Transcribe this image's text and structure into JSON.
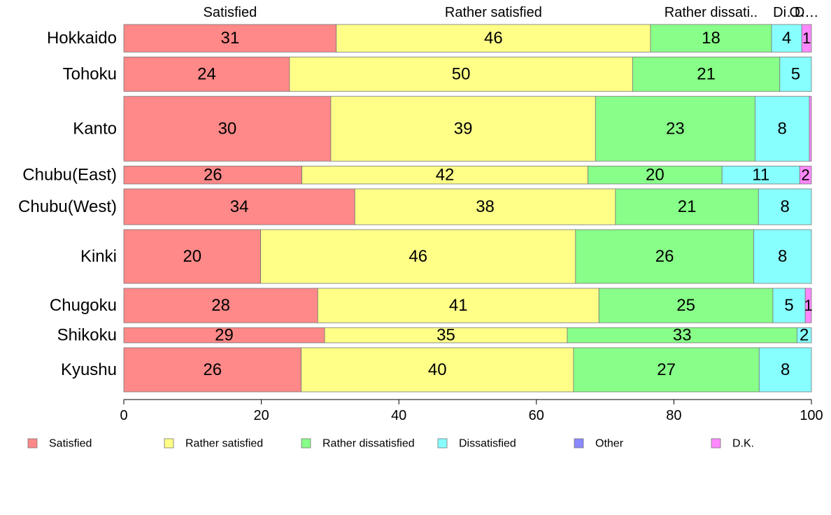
{
  "chart_data": {
    "type": "bar",
    "orientation": "horizontal",
    "stacked": true,
    "percent_scale": true,
    "categories": [
      "Hokkaido",
      "Tohoku",
      "Kanto",
      "Chubu(East)",
      "Chubu(West)",
      "Kinki",
      "Chugoku",
      "Shikoku",
      "Kyushu"
    ],
    "series": [
      {
        "name": "Satisfied",
        "color": "#ff8888",
        "values": [
          30.9,
          24.1,
          30.1,
          25.9,
          33.6,
          19.9,
          28.2,
          29.2,
          25.8
        ]
      },
      {
        "name": "Rather satisfied",
        "color": "#ffff88",
        "values": [
          45.7,
          49.9,
          38.5,
          41.6,
          37.9,
          45.8,
          40.9,
          35.3,
          39.6
        ]
      },
      {
        "name": "Rather dissatisfied",
        "color": "#88ff88",
        "values": [
          17.6,
          21.4,
          23.2,
          19.5,
          20.8,
          25.9,
          25.3,
          33.4,
          27.0
        ]
      },
      {
        "name": "Dissatisfied",
        "color": "#88ffff",
        "values": [
          4.4,
          4.6,
          7.9,
          11.3,
          7.7,
          8.4,
          4.7,
          2.1,
          7.6
        ]
      },
      {
        "name": "Other",
        "color": "#8888ff",
        "values": [
          0,
          0,
          0,
          0,
          0,
          0,
          0,
          0,
          0
        ]
      },
      {
        "name": "D.K.",
        "color": "#ff88ff",
        "values": [
          1.4,
          0,
          0.3,
          1.7,
          0,
          0,
          0.9,
          0,
          0
        ]
      }
    ],
    "bar_weights": [
      1.0,
      1.25,
      2.35,
      0.65,
      1.3,
      1.95,
      1.25,
      0.55,
      1.6
    ],
    "top_labels": [
      "Satisfied",
      "Rather satisfied",
      "Rather dissati..",
      "Di…",
      "O…",
      "D…"
    ],
    "x_ticks": [
      "0",
      "20",
      "40",
      "60",
      "80",
      "100"
    ],
    "xlim": [
      0,
      100
    ],
    "grid": false,
    "legend_position": "bottom"
  }
}
